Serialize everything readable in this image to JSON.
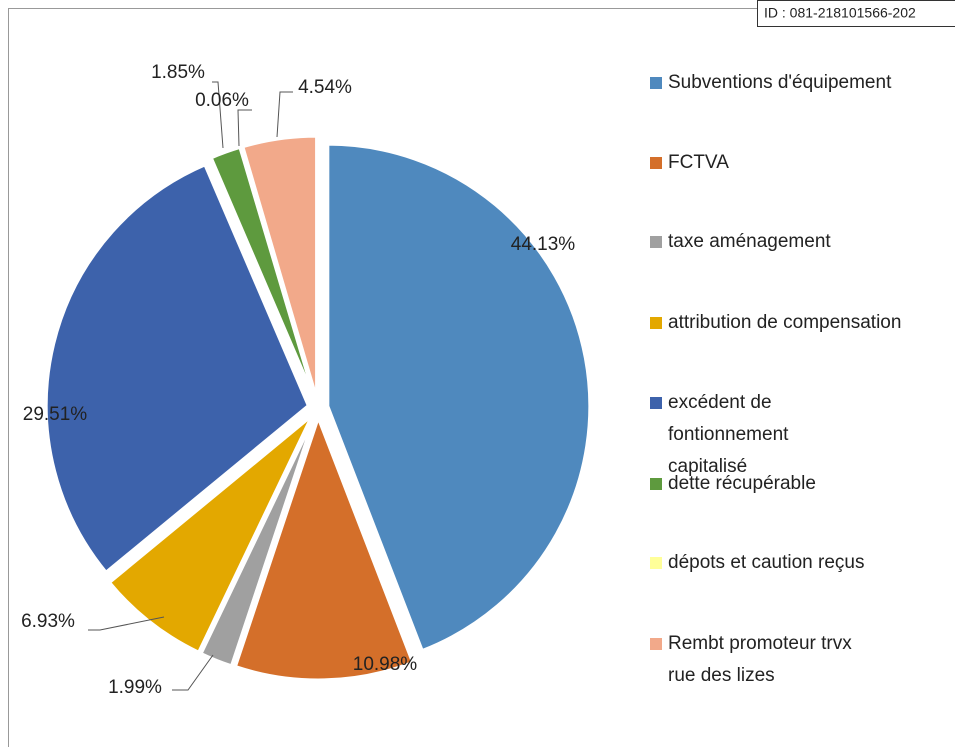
{
  "chart_data": {
    "type": "pie",
    "annotation": "ID : 081-218101566-202",
    "categories": [
      "Subventions d'équipement",
      "FCTVA",
      "taxe aménagement",
      "attribution de compensation",
      "excédent de fontionnement capitalisé",
      "dette récupérable",
      "dépots et caution reçus",
      "Rembt promoteur trvx rue des lizes"
    ],
    "values": [
      44.13,
      10.98,
      1.99,
      6.93,
      29.51,
      1.85,
      0.06,
      4.54
    ],
    "value_labels": [
      "44.13%",
      "10.98%",
      "1.99%",
      "6.93%",
      "29.51%",
      "1.85%",
      "0.06%",
      "4.54%"
    ],
    "colors": [
      "#4f89be",
      "#d46f2a",
      "#a0a0a0",
      "#e3a800",
      "#3d62ab",
      "#5e9a3e",
      "#ffff99",
      "#f2a98a"
    ],
    "legend": "right"
  }
}
